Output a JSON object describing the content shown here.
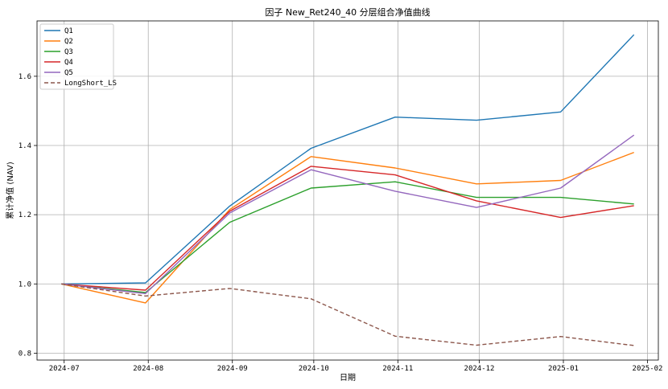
{
  "chart_data": {
    "type": "line",
    "title": "因子 New_Ret240_40 分层组合净值曲线",
    "xlabel": "日期",
    "ylabel": "累计净值 (NAV)",
    "x": [
      "2024-06-30",
      "2024-07-31",
      "2024-08-31",
      "2024-09-30",
      "2024-10-31",
      "2024-11-30",
      "2024-12-31",
      "2025-01-27"
    ],
    "x_ticks": [
      "2024-07",
      "2024-08",
      "2024-09",
      "2024-10",
      "2024-11",
      "2024-12",
      "2025-01",
      "2025-02"
    ],
    "x_tick_dates": [
      "2024-07-01",
      "2024-08-01",
      "2024-09-01",
      "2024-10-01",
      "2024-11-01",
      "2024-12-01",
      "2025-01-01",
      "2025-02-01"
    ],
    "xlim": [
      "2024-06-21",
      "2025-02-05"
    ],
    "y_ticks": [
      "0.8",
      "1.0",
      "1.2",
      "1.4",
      "1.6"
    ],
    "ylim": [
      0.78,
      1.76
    ],
    "grid": true,
    "legend_position": "top-left",
    "series": [
      {
        "name": "Q1",
        "color": "#1f77b4",
        "style": "solid",
        "values": [
          1.0,
          1.003,
          1.225,
          1.392,
          1.482,
          1.473,
          1.497,
          1.72
        ]
      },
      {
        "name": "Q2",
        "color": "#ff7f0e",
        "style": "solid",
        "values": [
          1.0,
          0.945,
          1.215,
          1.368,
          1.335,
          1.289,
          1.299,
          1.38
        ]
      },
      {
        "name": "Q3",
        "color": "#2ca02c",
        "style": "solid",
        "values": [
          1.0,
          0.975,
          1.178,
          1.277,
          1.295,
          1.25,
          1.25,
          1.231
        ]
      },
      {
        "name": "Q4",
        "color": "#d62728",
        "style": "solid",
        "values": [
          1.0,
          0.982,
          1.21,
          1.34,
          1.315,
          1.24,
          1.192,
          1.226
        ]
      },
      {
        "name": "Q5",
        "color": "#9467bd",
        "style": "solid",
        "values": [
          1.0,
          0.972,
          1.205,
          1.33,
          1.268,
          1.221,
          1.277,
          1.43
        ]
      },
      {
        "name": "LongShort_LS",
        "color": "#8c564b",
        "style": "dashed",
        "values": [
          1.0,
          0.965,
          0.987,
          0.957,
          0.849,
          0.823,
          0.848,
          0.822
        ]
      }
    ]
  }
}
